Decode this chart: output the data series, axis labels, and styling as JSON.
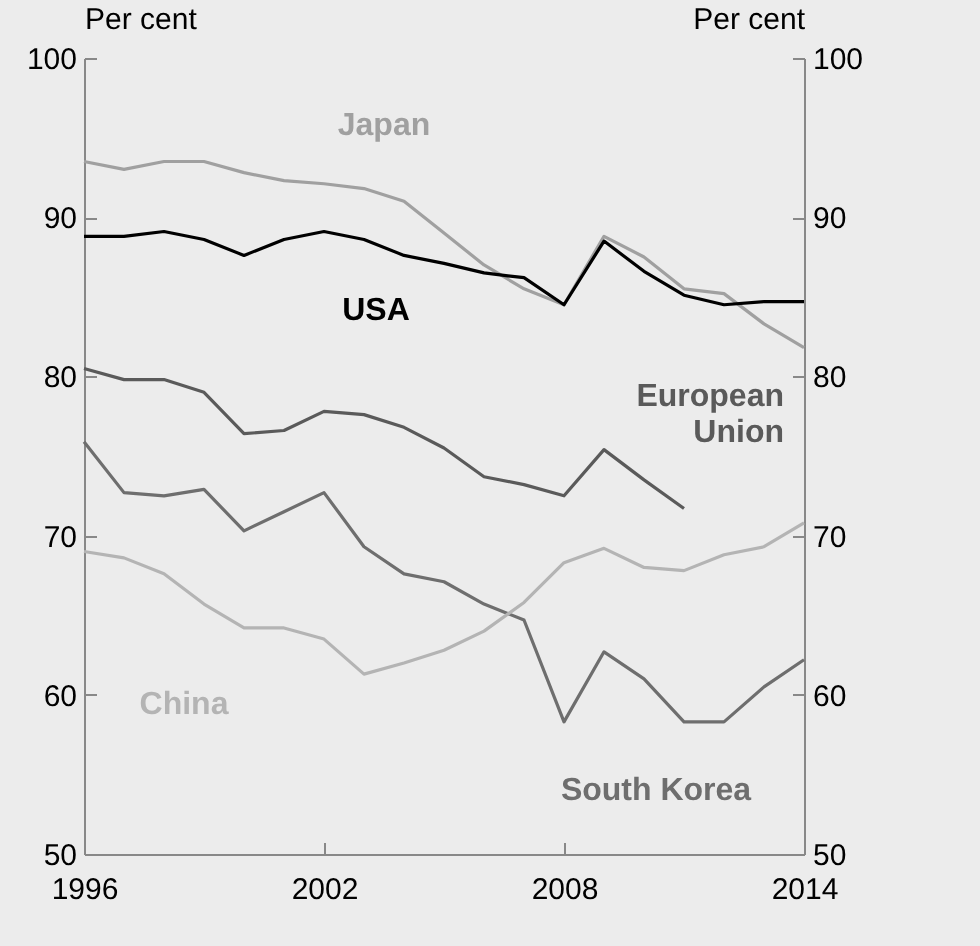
{
  "chart_data": {
    "type": "line",
    "ylabel": "Per cent",
    "y2label": "Per cent",
    "x": [
      1996,
      1997,
      1998,
      1999,
      2000,
      2001,
      2002,
      2003,
      2004,
      2005,
      2006,
      2007,
      2008,
      2009,
      2010,
      2011,
      2012,
      2013,
      2014
    ],
    "xlim": [
      1996,
      2014
    ],
    "xticks": [
      1996,
      2002,
      2008,
      2014
    ],
    "ylim": [
      50,
      100
    ],
    "yticks": [
      50,
      60,
      70,
      80,
      90,
      100
    ],
    "y2lim": [
      50,
      100
    ],
    "y2ticks": [
      50,
      60,
      70,
      80,
      90,
      100
    ],
    "grid": false,
    "legend": false,
    "marker": "none",
    "line_style": "solid",
    "series": [
      {
        "name": "Japan",
        "color": "#a0a0a0",
        "values": [
          93.5,
          93.0,
          93.5,
          93.5,
          92.8,
          92.3,
          92.1,
          91.8,
          91.0,
          89.0,
          87.0,
          85.5,
          84.5,
          88.8,
          87.5,
          85.5,
          85.2,
          83.3,
          81.8
        ]
      },
      {
        "name": "USA",
        "color": "#000000",
        "values": [
          88.8,
          88.8,
          89.1,
          88.6,
          87.6,
          88.6,
          89.1,
          88.6,
          87.6,
          87.1,
          86.5,
          86.2,
          84.5,
          88.5,
          86.6,
          85.1,
          84.5,
          84.7,
          84.7
        ]
      },
      {
        "name": "European Union",
        "color": "#5a5a5a",
        "values": [
          80.5,
          79.8,
          79.8,
          79.0,
          76.4,
          76.6,
          77.8,
          77.6,
          76.8,
          75.5,
          73.7,
          73.2,
          72.5,
          75.4,
          73.5,
          71.7,
          null,
          null,
          null
        ]
      },
      {
        "name": "South Korea",
        "color": "#6e6e6e",
        "values": [
          75.9,
          72.7,
          72.5,
          72.9,
          70.3,
          71.5,
          72.7,
          69.3,
          67.6,
          67.1,
          65.7,
          64.7,
          58.3,
          62.7,
          61.0,
          58.3,
          58.3,
          60.5,
          62.2
        ]
      },
      {
        "name": "China",
        "color": "#b4b4b4",
        "values": [
          69.0,
          68.6,
          67.6,
          65.7,
          64.2,
          64.2,
          63.5,
          61.3,
          62.0,
          62.8,
          64.0,
          65.8,
          68.3,
          69.2,
          68.0,
          67.8,
          68.8,
          69.3,
          70.8
        ]
      }
    ]
  }
}
